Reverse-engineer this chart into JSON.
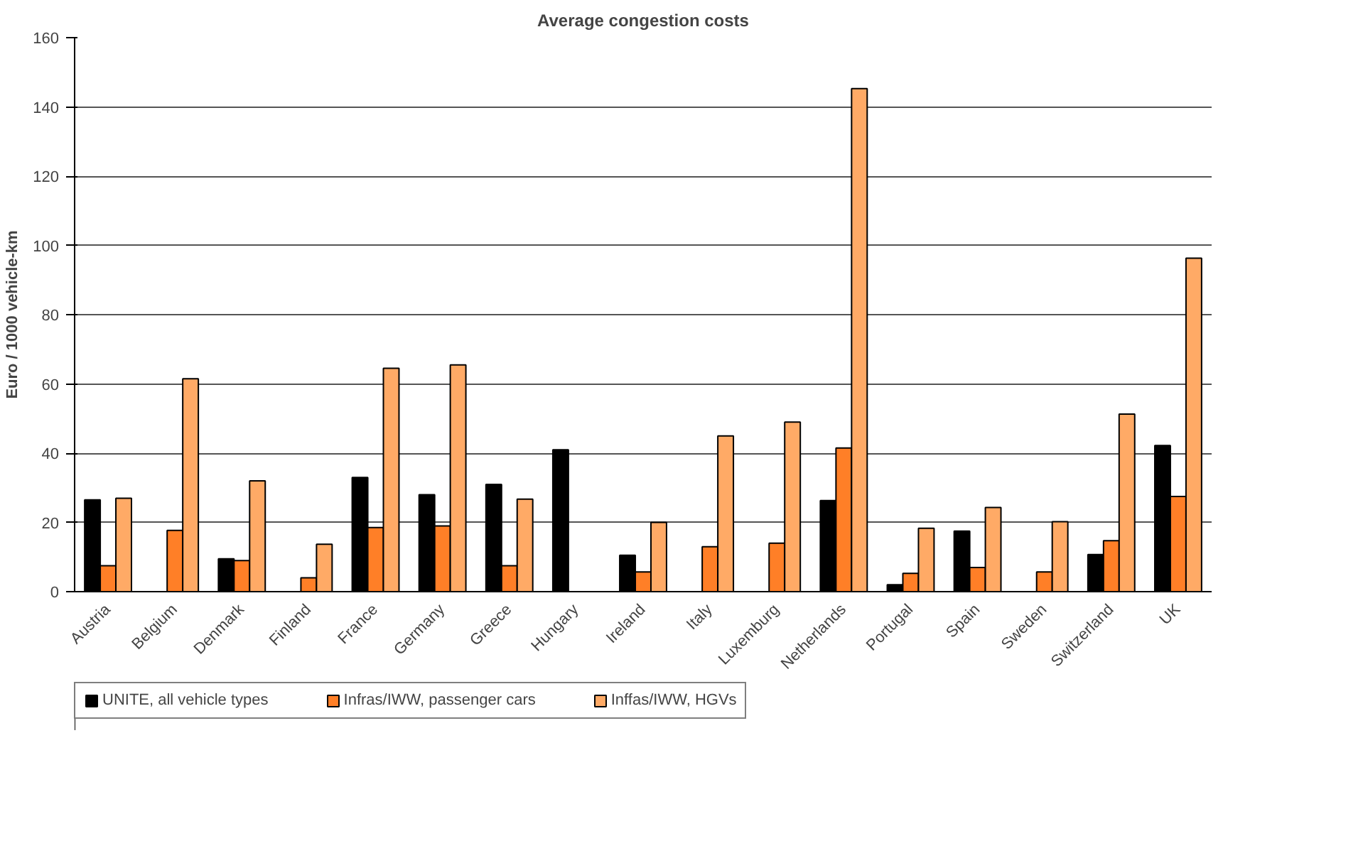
{
  "chart_data": {
    "type": "bar",
    "title": "Average congestion costs",
    "ylabel": "Euro / 1000 vehicle-km",
    "categories": [
      "Austria",
      "Belgium",
      "Denmark",
      "Finland",
      "France",
      "Germany",
      "Greece",
      "Hungary",
      "Ireland",
      "Italy",
      "Luxemburg",
      "Netherlands",
      "Portugal",
      "Spain",
      "Sweden",
      "Switzerland",
      "UK"
    ],
    "series": [
      {
        "name": "UNITE, all vehicle types",
        "color": "#000000",
        "values": [
          26.5,
          null,
          9.5,
          null,
          33,
          28,
          31,
          41,
          10.5,
          null,
          null,
          26.3,
          2,
          17.5,
          null,
          10.7,
          42.2
        ]
      },
      {
        "name": "Infras/IWW, passenger cars",
        "color": "#ff7f27",
        "values": [
          7.5,
          17.7,
          9,
          4,
          18.5,
          19,
          7.5,
          null,
          5.7,
          13,
          14,
          41.5,
          5.3,
          7,
          5.7,
          14.7,
          27.5
        ]
      },
      {
        "name": "Inffas/IWW, HGVs",
        "color": "#ffaa66",
        "values": [
          27,
          61.5,
          32,
          13.7,
          64.5,
          65.5,
          26.7,
          null,
          20,
          45,
          49,
          145.3,
          18.3,
          24.3,
          20.2,
          51.3,
          96.3
        ]
      }
    ],
    "ylim": [
      0,
      160
    ],
    "yticks": [
      0,
      20,
      40,
      60,
      80,
      100,
      120,
      140,
      160
    ],
    "grid": "y",
    "legend": "bottom"
  }
}
